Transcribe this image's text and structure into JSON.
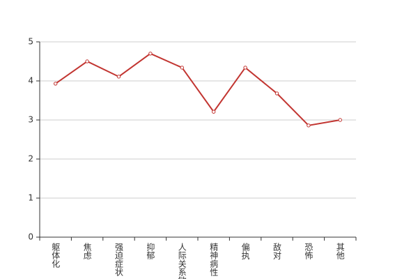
{
  "chart_data": {
    "type": "line",
    "categories": [
      "躯体化",
      "焦虑",
      "强迫症状",
      "抑郁",
      "人际关系敏感",
      "精神病性",
      "偏执",
      "敌对",
      "恐怖",
      "其他"
    ],
    "series": [
      {
        "color": "#c23531",
        "values": [
          3.93,
          4.5,
          4.11,
          4.7,
          4.34,
          3.21,
          4.34,
          3.68,
          2.86,
          3.0
        ]
      }
    ],
    "ylim": [
      0,
      5
    ],
    "yticks": [
      0,
      1,
      2,
      3,
      4,
      5
    ],
    "grid": true
  }
}
